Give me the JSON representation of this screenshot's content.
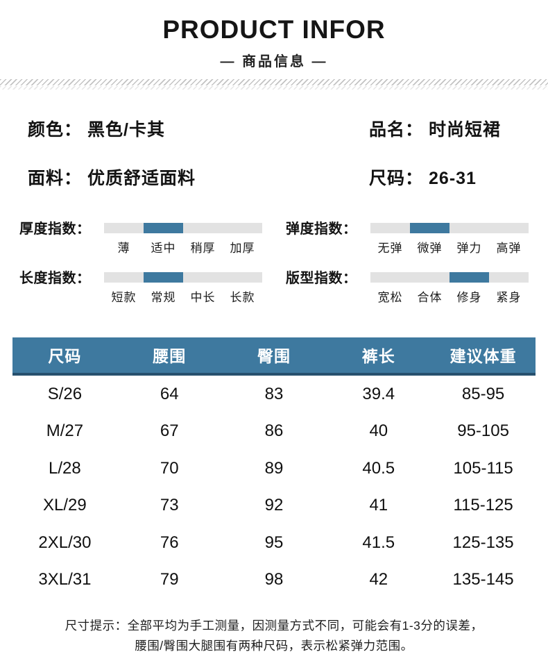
{
  "header": {
    "title": "PRODUCT INFOR",
    "subtitle": "— 商品信息 —"
  },
  "colors": {
    "accent_blue": "#3e799f",
    "header_border_blue": "#27506e",
    "bar_track_gray": "#e2e2e2",
    "hatch_gray": "#c3c3c3"
  },
  "attributes": [
    {
      "label": "颜色：",
      "value": "黑色/卡其"
    },
    {
      "label": "品名：",
      "value": "时尚短裙"
    },
    {
      "label": "面料：",
      "value": "优质舒适面料"
    },
    {
      "label": "尺码：",
      "value": "26-31"
    }
  ],
  "indexes": [
    {
      "label": "厚度指数：",
      "options": [
        "薄",
        "适中",
        "稍厚",
        "加厚"
      ],
      "active": 1
    },
    {
      "label": "弹度指数：",
      "options": [
        "无弹",
        "微弹",
        "弹力",
        "高弹"
      ],
      "active": 1
    },
    {
      "label": "长度指数：",
      "options": [
        "短款",
        "常规",
        "中长",
        "长款"
      ],
      "active": 1
    },
    {
      "label": "版型指数：",
      "options": [
        "宽松",
        "合体",
        "修身",
        "紧身"
      ],
      "active": 2
    }
  ],
  "size_table": {
    "headers": [
      "尺码",
      "腰围",
      "臀围",
      "裤长",
      "建议体重"
    ],
    "rows": [
      [
        "S/26",
        "64",
        "83",
        "39.4",
        "85-95"
      ],
      [
        "M/27",
        "67",
        "86",
        "40",
        "95-105"
      ],
      [
        "L/28",
        "70",
        "89",
        "40.5",
        "105-115"
      ],
      [
        "XL/29",
        "73",
        "92",
        "41",
        "115-125"
      ],
      [
        "2XL/30",
        "76",
        "95",
        "41.5",
        "125-135"
      ],
      [
        "3XL/31",
        "79",
        "98",
        "42",
        "135-145"
      ]
    ]
  },
  "footnote": {
    "line1": "尺寸提示：全部平均为手工测量，因测量方式不同，可能会有1-3分的误差，",
    "line2": "腰围/臀围大腿围有两种尺码，表示松紧弹力范围。"
  }
}
